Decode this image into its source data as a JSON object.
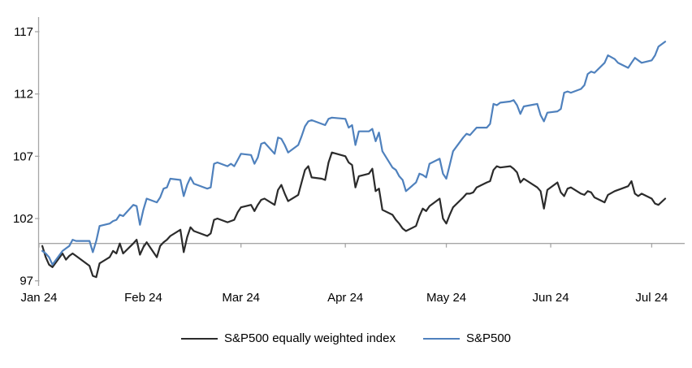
{
  "chart_data": {
    "type": "line",
    "title": "",
    "xlabel": "",
    "ylabel": "",
    "ylim": [
      97,
      117
    ],
    "y_ticks": [
      97,
      102,
      107,
      112,
      117
    ],
    "x_tick_labels": [
      "Jan 24",
      "Feb 24",
      "Mar 24",
      "Apr 24",
      "May 24",
      "Jun 24",
      "Jul 24"
    ],
    "x_tick_days": [
      0,
      31,
      60,
      91,
      121,
      152,
      182
    ],
    "x_range_days": [
      0,
      186
    ],
    "baseline_value": 100,
    "grid": "none",
    "legend_position": "bottom-center",
    "axis_color": "#a6a6a6",
    "text_color": "#000000",
    "series": [
      {
        "name": "S&P500 equally weighted index",
        "color": "#2b2b2b",
        "points": [
          [
            1,
            99.8
          ],
          [
            2,
            98.9
          ],
          [
            3,
            98.3
          ],
          [
            4,
            98.1
          ],
          [
            7,
            99.2
          ],
          [
            8,
            98.7
          ],
          [
            9,
            99.0
          ],
          [
            10,
            99.2
          ],
          [
            11,
            99.0
          ],
          [
            15,
            98.2
          ],
          [
            16,
            97.4
          ],
          [
            17,
            97.3
          ],
          [
            18,
            98.4
          ],
          [
            21,
            98.9
          ],
          [
            22,
            99.4
          ],
          [
            23,
            99.2
          ],
          [
            24,
            100.0
          ],
          [
            25,
            99.2
          ],
          [
            28,
            100.0
          ],
          [
            29,
            100.3
          ],
          [
            30,
            99.1
          ],
          [
            31,
            99.7
          ],
          [
            32,
            100.1
          ],
          [
            35,
            98.9
          ],
          [
            36,
            99.8
          ],
          [
            37,
            100.1
          ],
          [
            38,
            100.3
          ],
          [
            39,
            100.6
          ],
          [
            42,
            101.1
          ],
          [
            43,
            99.3
          ],
          [
            44,
            100.5
          ],
          [
            45,
            101.3
          ],
          [
            46,
            101.0
          ],
          [
            50,
            100.6
          ],
          [
            51,
            100.8
          ],
          [
            52,
            101.9
          ],
          [
            53,
            102.0
          ],
          [
            56,
            101.7
          ],
          [
            57,
            101.8
          ],
          [
            58,
            101.9
          ],
          [
            59,
            102.5
          ],
          [
            60,
            102.9
          ],
          [
            63,
            103.1
          ],
          [
            64,
            102.6
          ],
          [
            65,
            103.1
          ],
          [
            66,
            103.5
          ],
          [
            67,
            103.6
          ],
          [
            70,
            103.1
          ],
          [
            71,
            104.3
          ],
          [
            72,
            104.7
          ],
          [
            73,
            104.0
          ],
          [
            74,
            103.4
          ],
          [
            77,
            103.9
          ],
          [
            78,
            104.9
          ],
          [
            79,
            105.9
          ],
          [
            80,
            106.2
          ],
          [
            81,
            105.3
          ],
          [
            84,
            105.2
          ],
          [
            85,
            105.1
          ],
          [
            86,
            106.5
          ],
          [
            87,
            107.3
          ],
          [
            91,
            107.0
          ],
          [
            92,
            106.5
          ],
          [
            93,
            106.3
          ],
          [
            94,
            104.5
          ],
          [
            95,
            105.4
          ],
          [
            98,
            105.6
          ],
          [
            99,
            106.0
          ],
          [
            100,
            104.2
          ],
          [
            101,
            104.4
          ],
          [
            102,
            102.7
          ],
          [
            105,
            102.3
          ],
          [
            106,
            101.9
          ],
          [
            107,
            101.6
          ],
          [
            108,
            101.2
          ],
          [
            109,
            101.0
          ],
          [
            112,
            101.4
          ],
          [
            113,
            102.2
          ],
          [
            114,
            102.8
          ],
          [
            115,
            102.6
          ],
          [
            116,
            103.0
          ],
          [
            119,
            103.6
          ],
          [
            120,
            102.0
          ],
          [
            121,
            101.6
          ],
          [
            122,
            102.3
          ],
          [
            123,
            102.9
          ],
          [
            126,
            103.7
          ],
          [
            127,
            104.0
          ],
          [
            128,
            104.0
          ],
          [
            129,
            104.1
          ],
          [
            130,
            104.5
          ],
          [
            133,
            104.9
          ],
          [
            134,
            105.0
          ],
          [
            135,
            105.9
          ],
          [
            136,
            106.2
          ],
          [
            137,
            106.1
          ],
          [
            140,
            106.2
          ],
          [
            141,
            106.0
          ],
          [
            142,
            105.7
          ],
          [
            143,
            104.9
          ],
          [
            144,
            105.2
          ],
          [
            148,
            104.5
          ],
          [
            149,
            104.2
          ],
          [
            150,
            102.8
          ],
          [
            151,
            104.3
          ],
          [
            154,
            104.9
          ],
          [
            155,
            104.1
          ],
          [
            156,
            103.8
          ],
          [
            157,
            104.4
          ],
          [
            158,
            104.5
          ],
          [
            161,
            104.0
          ],
          [
            162,
            103.9
          ],
          [
            163,
            104.2
          ],
          [
            164,
            104.1
          ],
          [
            165,
            103.7
          ],
          [
            168,
            103.3
          ],
          [
            169,
            103.9
          ],
          [
            171,
            104.2
          ],
          [
            172,
            104.3
          ],
          [
            175,
            104.6
          ],
          [
            176,
            105.0
          ],
          [
            177,
            104.0
          ],
          [
            178,
            103.8
          ],
          [
            179,
            104.0
          ],
          [
            182,
            103.6
          ],
          [
            183,
            103.2
          ],
          [
            184,
            103.1
          ],
          [
            186,
            103.6
          ]
        ]
      },
      {
        "name": "S&P500",
        "color": "#4f81bd",
        "points": [
          [
            1,
            99.4
          ],
          [
            2,
            99.2
          ],
          [
            3,
            98.9
          ],
          [
            4,
            98.3
          ],
          [
            7,
            99.4
          ],
          [
            8,
            99.6
          ],
          [
            9,
            99.8
          ],
          [
            10,
            100.3
          ],
          [
            11,
            100.2
          ],
          [
            15,
            100.2
          ],
          [
            16,
            99.3
          ],
          [
            17,
            100.2
          ],
          [
            18,
            101.4
          ],
          [
            21,
            101.6
          ],
          [
            22,
            101.8
          ],
          [
            23,
            101.9
          ],
          [
            24,
            102.3
          ],
          [
            25,
            102.2
          ],
          [
            28,
            103.1
          ],
          [
            29,
            103.0
          ],
          [
            30,
            101.5
          ],
          [
            31,
            102.7
          ],
          [
            32,
            103.6
          ],
          [
            35,
            103.3
          ],
          [
            36,
            103.7
          ],
          [
            37,
            104.4
          ],
          [
            38,
            104.5
          ],
          [
            39,
            105.2
          ],
          [
            42,
            105.1
          ],
          [
            43,
            103.8
          ],
          [
            44,
            104.7
          ],
          [
            45,
            105.3
          ],
          [
            46,
            104.8
          ],
          [
            50,
            104.4
          ],
          [
            51,
            104.5
          ],
          [
            52,
            106.4
          ],
          [
            53,
            106.5
          ],
          [
            56,
            106.2
          ],
          [
            57,
            106.4
          ],
          [
            58,
            106.2
          ],
          [
            59,
            106.7
          ],
          [
            60,
            107.2
          ],
          [
            63,
            107.1
          ],
          [
            64,
            106.4
          ],
          [
            65,
            106.9
          ],
          [
            66,
            108.0
          ],
          [
            67,
            108.1
          ],
          [
            70,
            107.2
          ],
          [
            71,
            108.5
          ],
          [
            72,
            108.4
          ],
          [
            73,
            107.9
          ],
          [
            74,
            107.3
          ],
          [
            77,
            107.9
          ],
          [
            78,
            108.6
          ],
          [
            79,
            109.4
          ],
          [
            80,
            109.8
          ],
          [
            81,
            109.9
          ],
          [
            84,
            109.6
          ],
          [
            85,
            109.5
          ],
          [
            86,
            110.0
          ],
          [
            87,
            110.1
          ],
          [
            91,
            110.0
          ],
          [
            92,
            109.3
          ],
          [
            93,
            109.5
          ],
          [
            94,
            107.9
          ],
          [
            95,
            109.0
          ],
          [
            98,
            109.0
          ],
          [
            99,
            109.2
          ],
          [
            100,
            108.2
          ],
          [
            101,
            108.9
          ],
          [
            102,
            107.4
          ],
          [
            105,
            106.1
          ],
          [
            106,
            105.9
          ],
          [
            107,
            105.4
          ],
          [
            108,
            105.1
          ],
          [
            109,
            104.2
          ],
          [
            112,
            104.9
          ],
          [
            113,
            105.6
          ],
          [
            114,
            105.5
          ],
          [
            115,
            105.3
          ],
          [
            116,
            106.4
          ],
          [
            119,
            106.8
          ],
          [
            120,
            105.6
          ],
          [
            121,
            105.2
          ],
          [
            122,
            106.3
          ],
          [
            123,
            107.4
          ],
          [
            126,
            108.5
          ],
          [
            127,
            108.8
          ],
          [
            128,
            108.7
          ],
          [
            129,
            109.0
          ],
          [
            130,
            109.3
          ],
          [
            133,
            109.3
          ],
          [
            134,
            109.6
          ],
          [
            135,
            111.2
          ],
          [
            136,
            111.1
          ],
          [
            137,
            111.3
          ],
          [
            140,
            111.4
          ],
          [
            141,
            111.5
          ],
          [
            142,
            111.1
          ],
          [
            143,
            110.4
          ],
          [
            144,
            111.0
          ],
          [
            148,
            111.2
          ],
          [
            149,
            110.3
          ],
          [
            150,
            109.8
          ],
          [
            151,
            110.5
          ],
          [
            154,
            110.6
          ],
          [
            155,
            110.8
          ],
          [
            156,
            112.1
          ],
          [
            157,
            112.2
          ],
          [
            158,
            112.1
          ],
          [
            161,
            112.4
          ],
          [
            162,
            112.7
          ],
          [
            163,
            113.6
          ],
          [
            164,
            113.8
          ],
          [
            165,
            113.7
          ],
          [
            168,
            114.5
          ],
          [
            169,
            115.1
          ],
          [
            171,
            114.8
          ],
          [
            172,
            114.5
          ],
          [
            175,
            114.1
          ],
          [
            176,
            114.5
          ],
          [
            177,
            114.9
          ],
          [
            178,
            114.7
          ],
          [
            179,
            114.5
          ],
          [
            182,
            114.7
          ],
          [
            183,
            115.1
          ],
          [
            184,
            115.8
          ],
          [
            186,
            116.2
          ]
        ]
      }
    ]
  }
}
